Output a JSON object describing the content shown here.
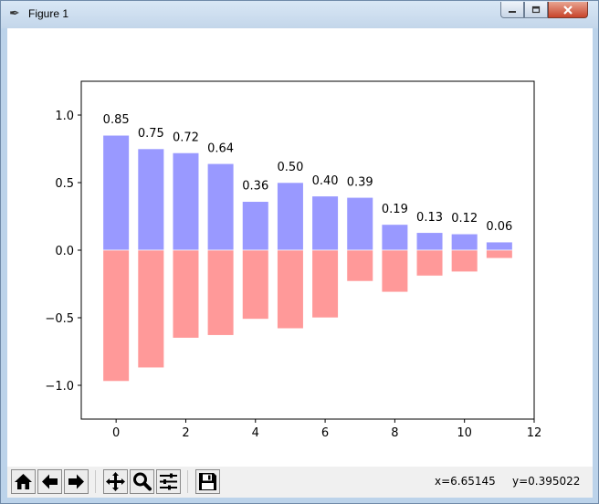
{
  "window": {
    "title": "Figure 1"
  },
  "chart_data": {
    "type": "bar",
    "x": [
      0,
      1,
      2,
      3,
      4,
      5,
      6,
      7,
      8,
      9,
      10,
      11
    ],
    "series": [
      {
        "values": [
          0.85,
          0.75,
          0.72,
          0.64,
          0.36,
          0.5,
          0.4,
          0.39,
          0.19,
          0.13,
          0.12,
          0.06
        ],
        "color": "#9999ff",
        "labels": [
          "0.85",
          "0.75",
          "0.72",
          "0.64",
          "0.36",
          "0.50",
          "0.40",
          "0.39",
          "0.19",
          "0.13",
          "0.12",
          "0.06"
        ]
      },
      {
        "values": [
          -0.97,
          -0.87,
          -0.65,
          -0.63,
          -0.51,
          -0.58,
          -0.5,
          -0.23,
          -0.31,
          -0.19,
          -0.16,
          -0.06
        ],
        "color": "#ff9999"
      }
    ],
    "xlim": [
      -1,
      12
    ],
    "ylim": [
      -1.25,
      1.25
    ],
    "xticks": [
      0,
      2,
      4,
      6,
      8,
      10,
      12
    ],
    "xtick_labels": [
      "0",
      "2",
      "4",
      "6",
      "8",
      "10",
      "12"
    ],
    "yticks": [
      -1.0,
      -0.5,
      0.0,
      0.5,
      1.0
    ],
    "ytick_labels": [
      "−1.0",
      "−0.5",
      "0.0",
      "0.5",
      "1.0"
    ],
    "bar_width": 0.75,
    "title": "",
    "xlabel": "",
    "ylabel": "",
    "grid": false
  },
  "status": {
    "x_readout": "x=6.65145",
    "y_readout": "y=0.395022"
  },
  "toolbar": {
    "icons": [
      "home-icon",
      "back-icon",
      "forward-icon",
      "pan-icon",
      "zoom-icon",
      "configure-subplots-icon",
      "save-icon"
    ]
  }
}
